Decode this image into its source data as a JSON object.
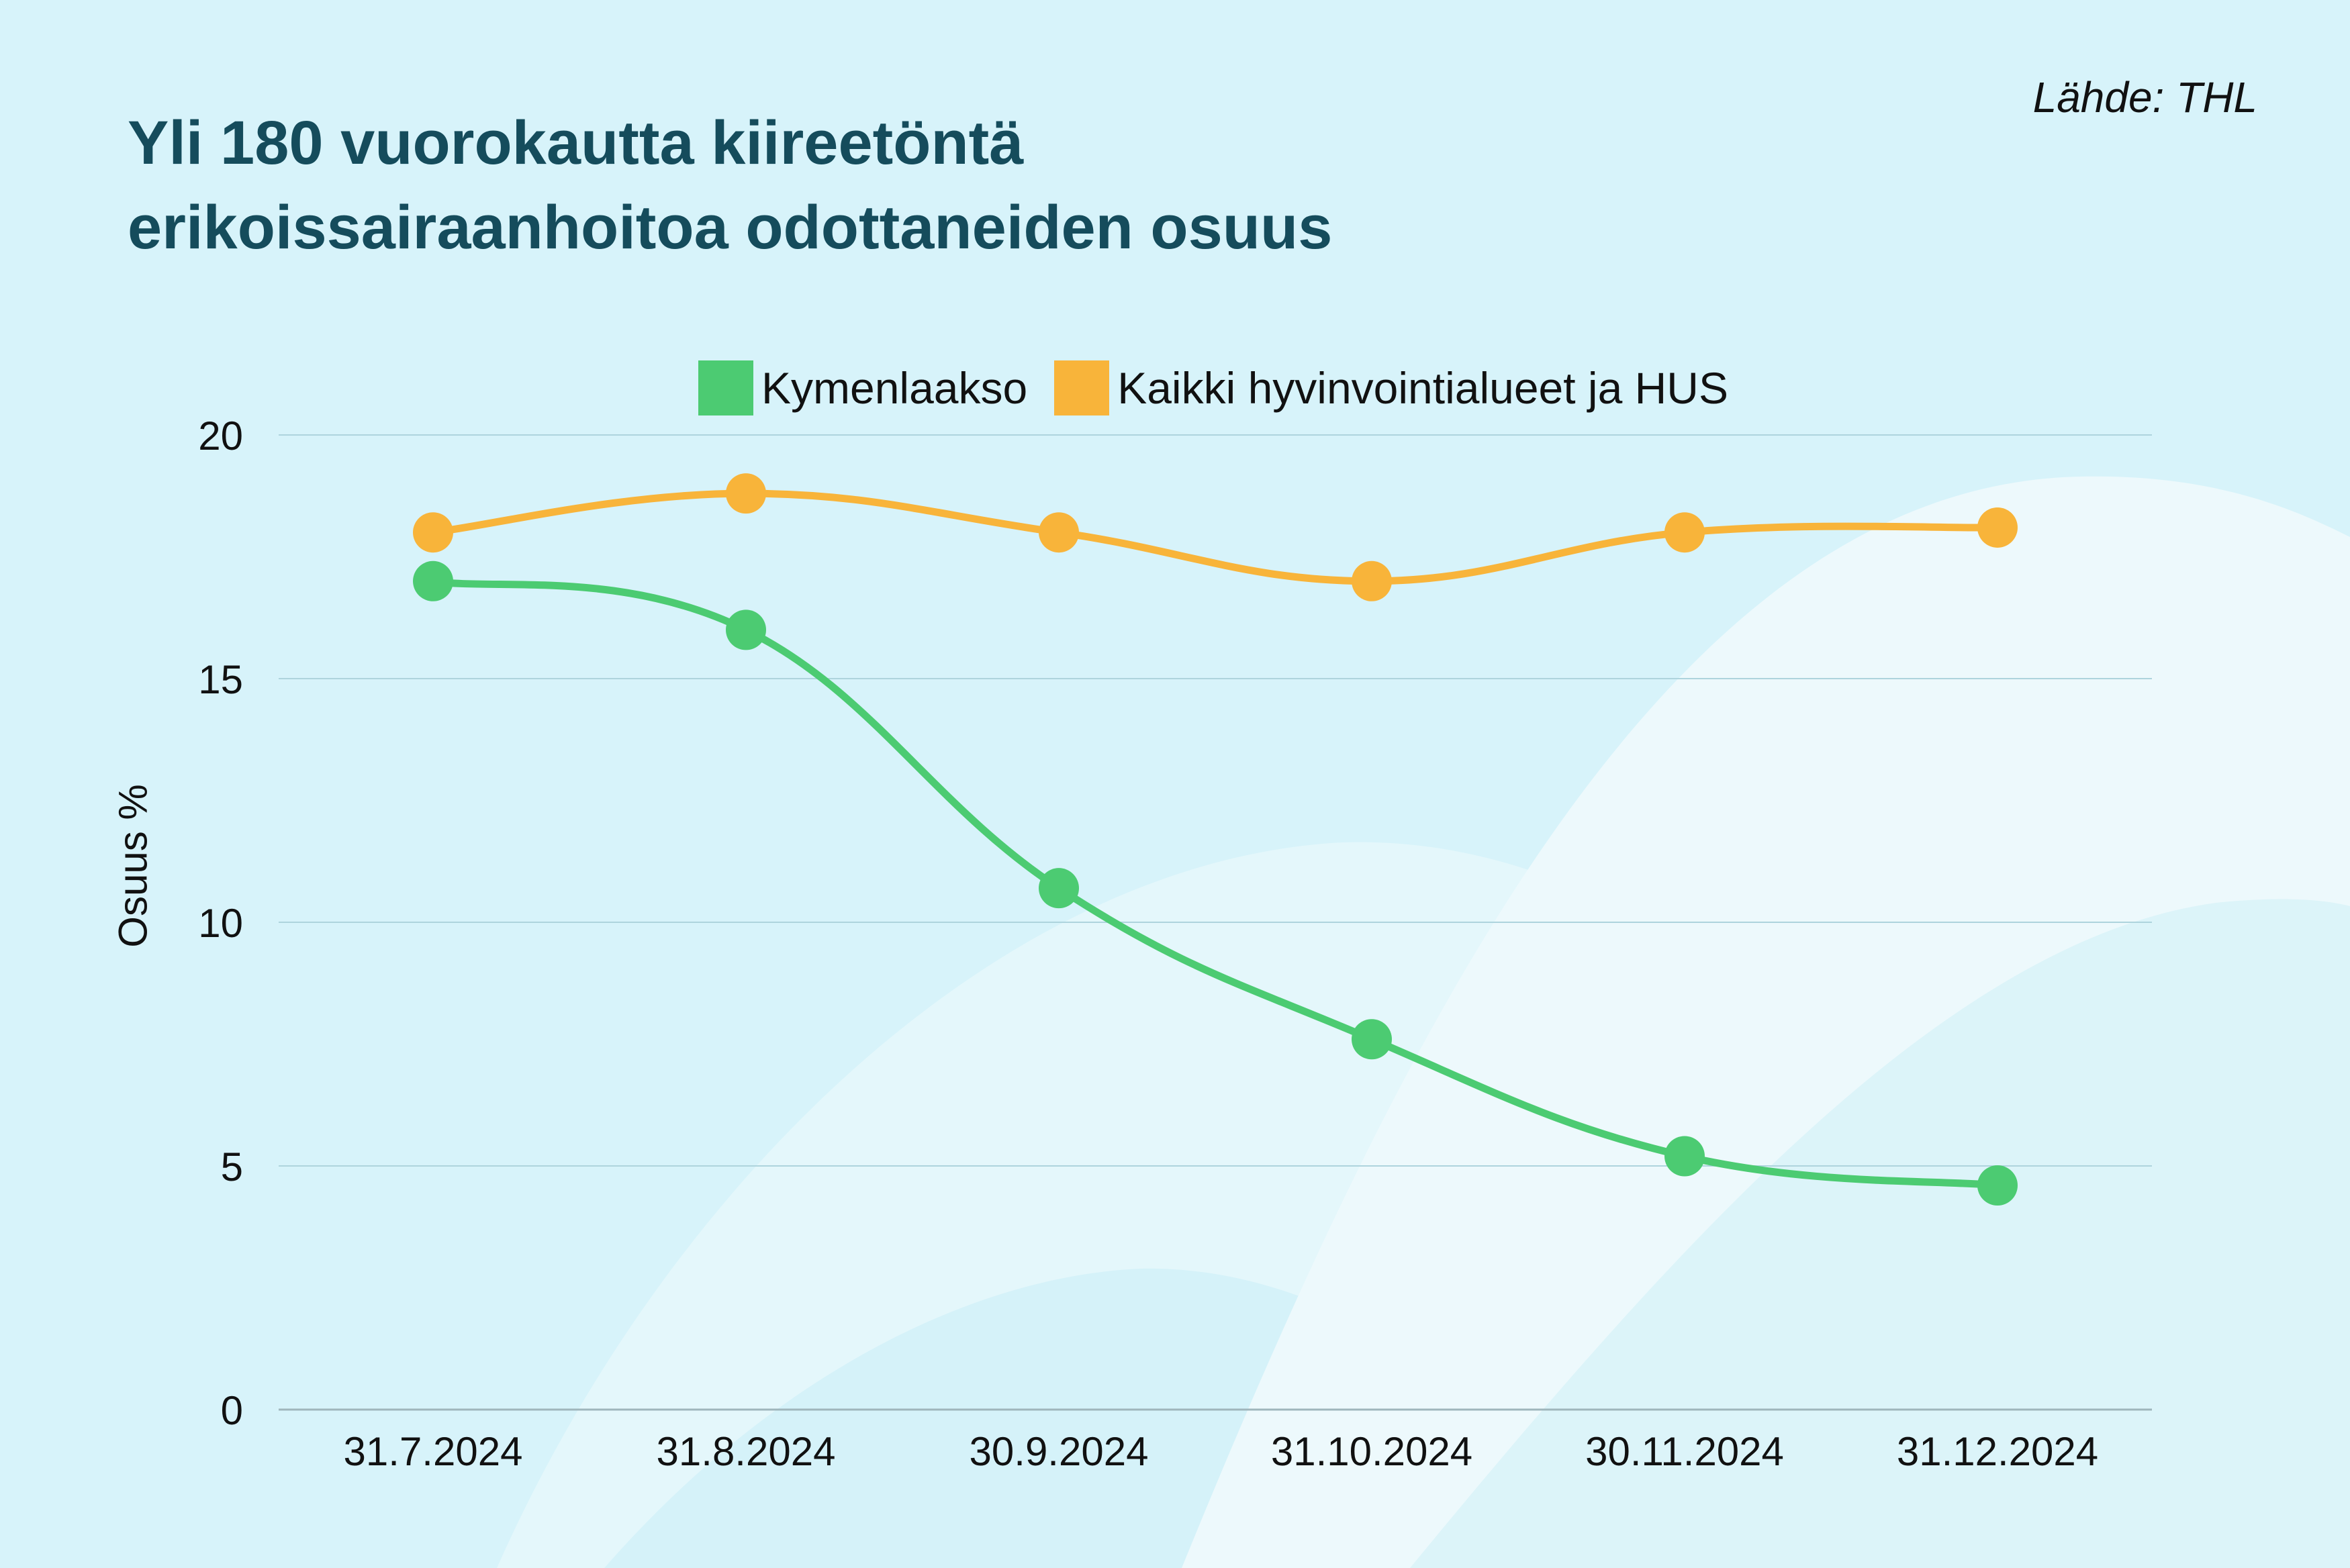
{
  "title_lines": [
    "Yli 180 vuorokautta kiireetöntä",
    "erikoissairaanhoitoa odottaneiden osuus"
  ],
  "source": "Lähde: THL",
  "colors": {
    "background": "#d7f3fa",
    "title": "#154c5c",
    "kymenlaakso": "#4ccb72",
    "kaikki": "#f8b43a",
    "grid": "#aed4dd"
  },
  "chart_data": {
    "type": "line",
    "title": "Yli 180 vuorokautta kiireetöntä erikoissairaanhoitoa odottaneiden osuus",
    "xlabel": "",
    "ylabel": "Osuus %",
    "ylim": [
      0,
      20
    ],
    "yticks": [
      0,
      5,
      10,
      15,
      20
    ],
    "grid": true,
    "legend_position": "top-center",
    "categories": [
      "31.7.2024",
      "31.8.2024",
      "30.9.2024",
      "31.10.2024",
      "30.11.2024",
      "31.12.2024"
    ],
    "series": [
      {
        "name": "Kymenlaakso",
        "color": "#4ccb72",
        "values": [
          17.0,
          16.0,
          10.7,
          7.6,
          5.2,
          4.6
        ]
      },
      {
        "name": "Kaikki hyvinvointialueet ja HUS",
        "color": "#f8b43a",
        "values": [
          18.0,
          18.8,
          18.0,
          17.0,
          18.0,
          18.1
        ]
      }
    ]
  }
}
